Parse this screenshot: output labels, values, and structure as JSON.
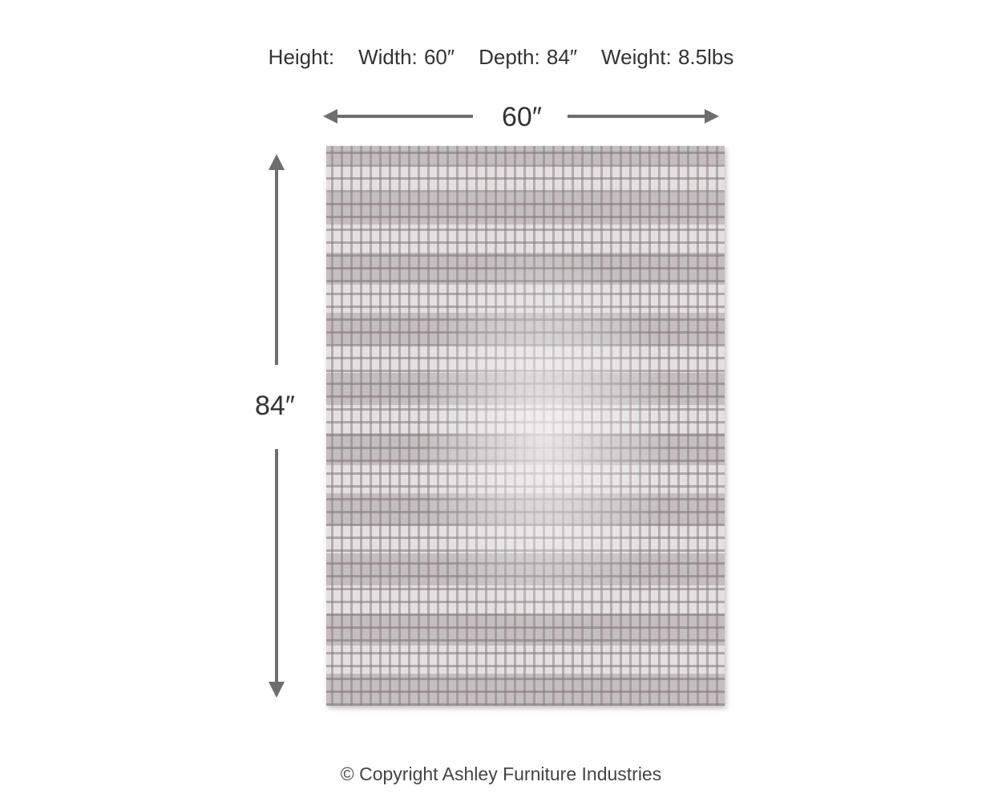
{
  "header": {
    "height": "Height:",
    "width": "Width: 60″",
    "depth": "Depth: 84″",
    "weight": "Weight: 8.5lbs"
  },
  "dimensions": {
    "width_label": "60″",
    "height_label": "84″"
  },
  "footer": {
    "copyright": "© Copyright Ashley Furniture Industries"
  }
}
